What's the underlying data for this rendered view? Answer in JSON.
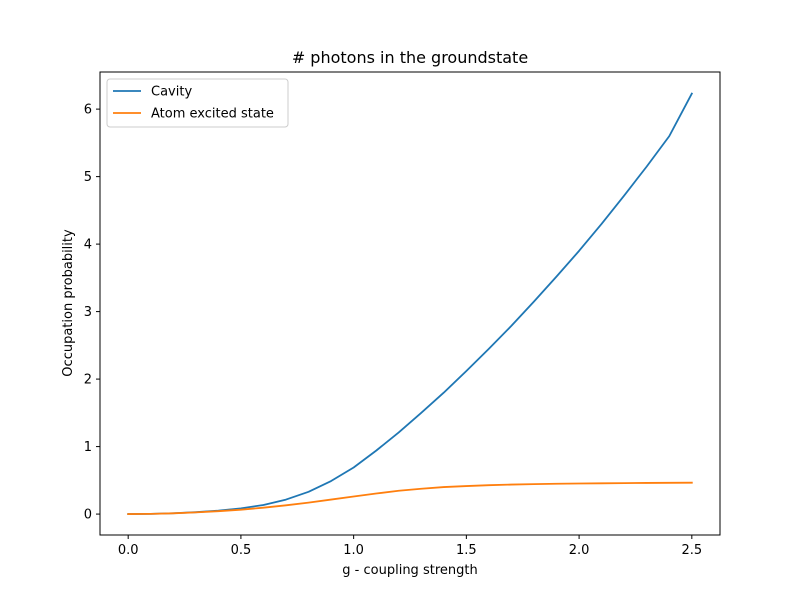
{
  "chart_data": {
    "type": "line",
    "title": "# photons in the groundstate",
    "xlabel": "g - coupling strength",
    "ylabel": "Occupation probability",
    "xlim": [
      -0.125,
      2.625
    ],
    "ylim": [
      -0.31,
      6.55
    ],
    "xticks": [
      0.0,
      0.5,
      1.0,
      1.5,
      2.0,
      2.5
    ],
    "xtick_labels": [
      "0.0",
      "0.5",
      "1.0",
      "1.5",
      "2.0",
      "2.5"
    ],
    "yticks": [
      0,
      1,
      2,
      3,
      4,
      5,
      6
    ],
    "ytick_labels": [
      "0",
      "1",
      "2",
      "3",
      "4",
      "5",
      "6"
    ],
    "grid": false,
    "legend": "top-left",
    "series": [
      {
        "name": "Cavity",
        "color": "#1f77b4",
        "x": [
          0.0,
          0.1,
          0.2,
          0.3,
          0.4,
          0.5,
          0.6,
          0.7,
          0.8,
          0.9,
          1.0,
          1.1,
          1.2,
          1.3,
          1.4,
          1.5,
          1.6,
          1.7,
          1.8,
          1.9,
          2.0,
          2.1,
          2.2,
          2.3,
          2.4,
          2.5
        ],
        "y": [
          0.0,
          0.003,
          0.012,
          0.028,
          0.05,
          0.085,
          0.135,
          0.215,
          0.33,
          0.49,
          0.69,
          0.94,
          1.21,
          1.5,
          1.8,
          2.12,
          2.45,
          2.79,
          3.15,
          3.52,
          3.9,
          4.3,
          4.72,
          5.15,
          5.6,
          6.23
        ]
      },
      {
        "name": "Atom excited state",
        "color": "#ff7f0e",
        "x": [
          0.0,
          0.1,
          0.2,
          0.3,
          0.4,
          0.5,
          0.6,
          0.7,
          0.8,
          0.9,
          1.0,
          1.1,
          1.2,
          1.3,
          1.4,
          1.5,
          1.6,
          1.7,
          1.8,
          1.9,
          2.0,
          2.1,
          2.2,
          2.3,
          2.4,
          2.5
        ],
        "y": [
          0.0,
          0.003,
          0.011,
          0.025,
          0.043,
          0.065,
          0.095,
          0.13,
          0.17,
          0.215,
          0.26,
          0.305,
          0.345,
          0.375,
          0.4,
          0.415,
          0.428,
          0.437,
          0.444,
          0.449,
          0.453,
          0.456,
          0.459,
          0.461,
          0.463,
          0.465
        ]
      }
    ]
  }
}
